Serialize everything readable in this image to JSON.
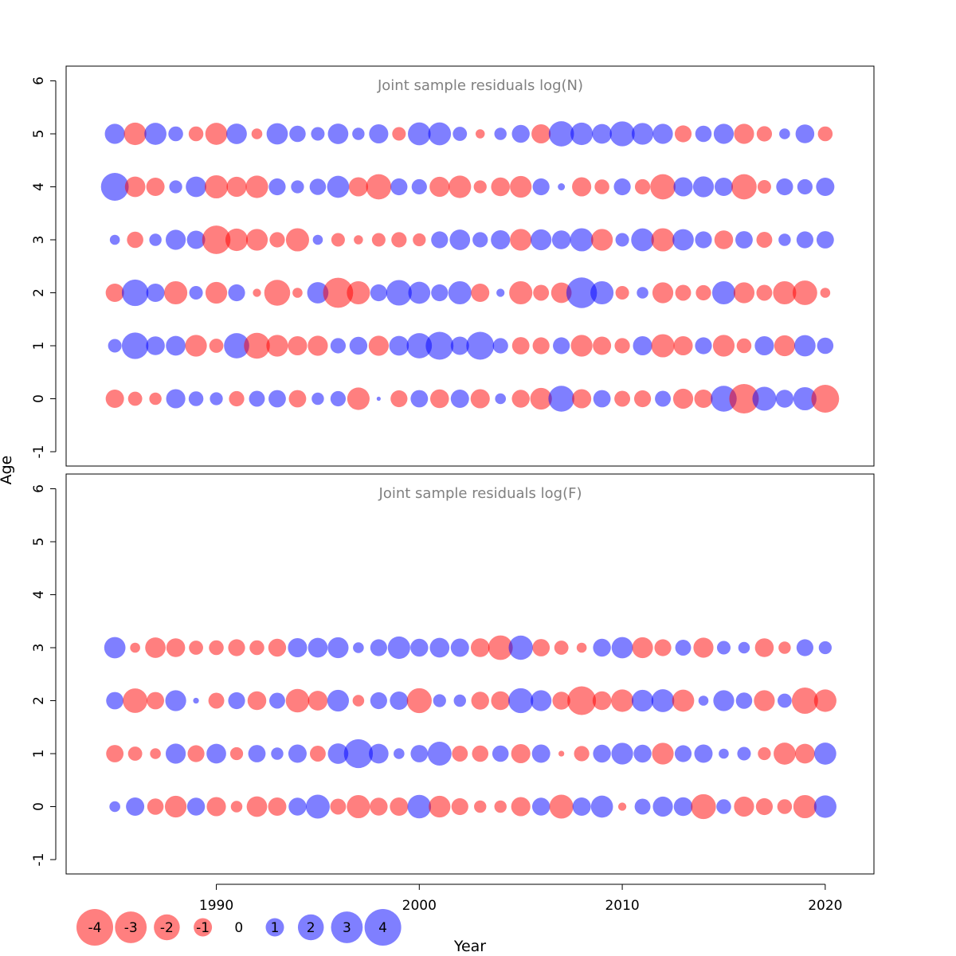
{
  "chart_data": {
    "type": "scatter",
    "xlabel": "Year",
    "ylabel": "Age",
    "xlim": [
      1982.6,
      2022.4
    ],
    "x_ticks": [
      1990,
      2000,
      2010,
      2020
    ],
    "y_ticks": [
      -1,
      0,
      1,
      2,
      3,
      4,
      5,
      6
    ],
    "ylim": [
      -1.2,
      6.2
    ],
    "colors": {
      "positive": "#0000ff",
      "negative": "#ff0000",
      "alpha": 0.5
    },
    "size_max_abs": 4,
    "legend": {
      "placement": "bottom-left",
      "values": [
        -4,
        -3,
        -2,
        -1,
        0,
        1,
        2,
        3,
        4
      ],
      "labels": [
        "-4",
        "-3",
        "-2",
        "-1",
        "0",
        "1",
        "2",
        "3",
        "4"
      ]
    },
    "panels": [
      {
        "title": "Joint sample residuals log(N)",
        "ages": [
          0,
          1,
          2,
          3,
          4,
          5
        ],
        "years": [
          1985,
          1986,
          1987,
          1988,
          1989,
          1990,
          1991,
          1992,
          1993,
          1994,
          1995,
          1996,
          1997,
          1998,
          1999,
          2000,
          2001,
          2002,
          2003,
          2004,
          2005,
          2006,
          2007,
          2008,
          2009,
          2010,
          2011,
          2012,
          2013,
          2014,
          2015,
          2016,
          2017,
          2018,
          2019,
          2020
        ],
        "residuals": [
          [
            -1.0,
            -0.6,
            -0.45,
            1.1,
            0.65,
            0.5,
            -0.7,
            0.75,
            0.9,
            -0.9,
            0.45,
            0.7,
            -1.5,
            0.05,
            -0.85,
            0.9,
            -1.05,
            1.0,
            -1.1,
            0.35,
            -0.95,
            -1.4,
            2.0,
            -1.1,
            0.9,
            -0.75,
            -0.85,
            0.75,
            -1.2,
            -1.0,
            2.0,
            -2.6,
            1.7,
            0.95,
            1.6,
            -2.3
          ],
          [
            0.55,
            2.1,
            1.05,
            1.15,
            -1.4,
            -0.6,
            1.9,
            -2.0,
            -1.4,
            -1.1,
            -1.2,
            0.7,
            0.95,
            -1.2,
            1.15,
            1.9,
            2.3,
            1.0,
            2.3,
            0.7,
            -0.9,
            -0.85,
            0.85,
            -1.4,
            -1.0,
            -0.7,
            1.1,
            -1.6,
            -1.1,
            0.85,
            -1.4,
            -0.65,
            1.1,
            -1.3,
            1.35,
            0.8
          ],
          [
            -1.0,
            2.1,
            1.0,
            -1.6,
            0.55,
            -1.4,
            0.85,
            -0.2,
            -2.0,
            -0.3,
            1.35,
            -2.7,
            -1.6,
            0.85,
            1.95,
            1.45,
            0.85,
            1.6,
            -1.0,
            0.2,
            -1.6,
            -0.75,
            -1.25,
            2.8,
            1.6,
            -0.55,
            0.4,
            -1.3,
            -0.75,
            -0.7,
            1.6,
            -1.3,
            -0.75,
            -1.6,
            -1.8,
            -0.3
          ],
          [
            0.3,
            -0.8,
            0.45,
            1.2,
            1.0,
            -2.4,
            -1.5,
            -1.4,
            -0.7,
            -1.6,
            0.3,
            -0.55,
            -0.25,
            -0.55,
            -0.7,
            -0.5,
            0.85,
            1.25,
            0.7,
            1.1,
            -1.4,
            1.3,
            1.05,
            1.6,
            -1.4,
            0.55,
            1.55,
            -1.6,
            1.35,
            0.85,
            -1.05,
            0.9,
            -0.75,
            0.45,
            0.85,
            0.9
          ],
          [
            2.3,
            -1.25,
            -1.0,
            0.5,
            1.25,
            -1.6,
            -1.2,
            -1.5,
            0.85,
            0.5,
            0.8,
            1.45,
            -1.1,
            -1.9,
            0.85,
            0.7,
            -1.2,
            -1.5,
            -0.5,
            -1.05,
            -1.4,
            0.85,
            0.15,
            -1.1,
            -0.65,
            0.85,
            -0.7,
            -1.9,
            1.1,
            1.3,
            1.0,
            -1.9,
            -0.55,
            0.85,
            0.7,
            1.0
          ],
          [
            1.2,
            -1.5,
            1.45,
            0.65,
            -0.65,
            -1.45,
            1.25,
            -0.35,
            1.35,
            0.8,
            0.55,
            1.25,
            0.45,
            1.1,
            -0.55,
            1.55,
            1.55,
            0.6,
            -0.25,
            0.45,
            0.95,
            -1.1,
            1.9,
            1.5,
            1.15,
            1.85,
            1.4,
            1.2,
            -0.85,
            0.8,
            1.2,
            -1.2,
            -0.7,
            0.35,
            1.05,
            -0.65
          ]
        ]
      },
      {
        "title": "Joint sample residuals log(F)",
        "ages": [
          0,
          1,
          2,
          3
        ],
        "years": [
          1985,
          1986,
          1987,
          1988,
          1989,
          1990,
          1991,
          1992,
          1993,
          1994,
          1995,
          1996,
          1997,
          1998,
          1999,
          2000,
          2001,
          2002,
          2003,
          2004,
          2005,
          2006,
          2007,
          2008,
          2009,
          2010,
          2011,
          2012,
          2013,
          2014,
          2015,
          2016,
          2017,
          2018,
          2019,
          2020
        ],
        "residuals": [
          [
            0.35,
            1.0,
            -0.8,
            -1.4,
            0.95,
            -1.1,
            -0.4,
            -1.25,
            -1.0,
            0.95,
            1.7,
            -0.75,
            -1.6,
            -0.95,
            -1.0,
            1.65,
            -1.4,
            -0.85,
            -0.45,
            -0.45,
            -1.1,
            0.95,
            -1.7,
            1.0,
            1.45,
            -0.2,
            0.75,
            1.2,
            1.05,
            -1.85,
            0.65,
            -1.2,
            -0.85,
            -0.65,
            -1.6,
            1.5
          ],
          [
            -0.9,
            -0.6,
            -0.35,
            1.2,
            -0.85,
            1.15,
            -0.5,
            0.9,
            0.45,
            1.0,
            -0.75,
            1.25,
            2.5,
            1.15,
            0.35,
            0.9,
            1.7,
            -0.75,
            -0.8,
            0.8,
            -1.1,
            1.0,
            -0.1,
            -0.7,
            0.95,
            1.4,
            0.95,
            -1.4,
            0.85,
            1.0,
            0.3,
            0.55,
            -0.5,
            -1.45,
            -1.15,
            1.45
          ],
          [
            0.9,
            -1.8,
            -0.9,
            1.3,
            0.1,
            -0.75,
            0.85,
            -1.05,
            0.75,
            -1.65,
            -1.15,
            1.4,
            -0.4,
            0.85,
            1.0,
            -1.85,
            0.5,
            0.45,
            -0.95,
            -1.05,
            1.85,
            1.3,
            -0.95,
            -2.45,
            -1.05,
            -1.5,
            1.4,
            1.55,
            -1.45,
            0.3,
            1.3,
            0.8,
            -1.3,
            0.6,
            -2.05,
            -1.5
          ],
          [
            1.35,
            -0.3,
            -1.25,
            -1.05,
            -0.6,
            -0.65,
            -0.85,
            -0.65,
            -0.95,
            1.1,
            1.15,
            1.3,
            0.35,
            0.85,
            1.5,
            0.95,
            1.15,
            1.0,
            -1.05,
            -1.8,
            1.75,
            -0.9,
            -0.6,
            -0.3,
            0.95,
            1.35,
            -1.3,
            -0.85,
            0.75,
            -1.2,
            0.55,
            0.4,
            -1.05,
            -0.45,
            0.85,
            0.5
          ]
        ]
      }
    ]
  }
}
